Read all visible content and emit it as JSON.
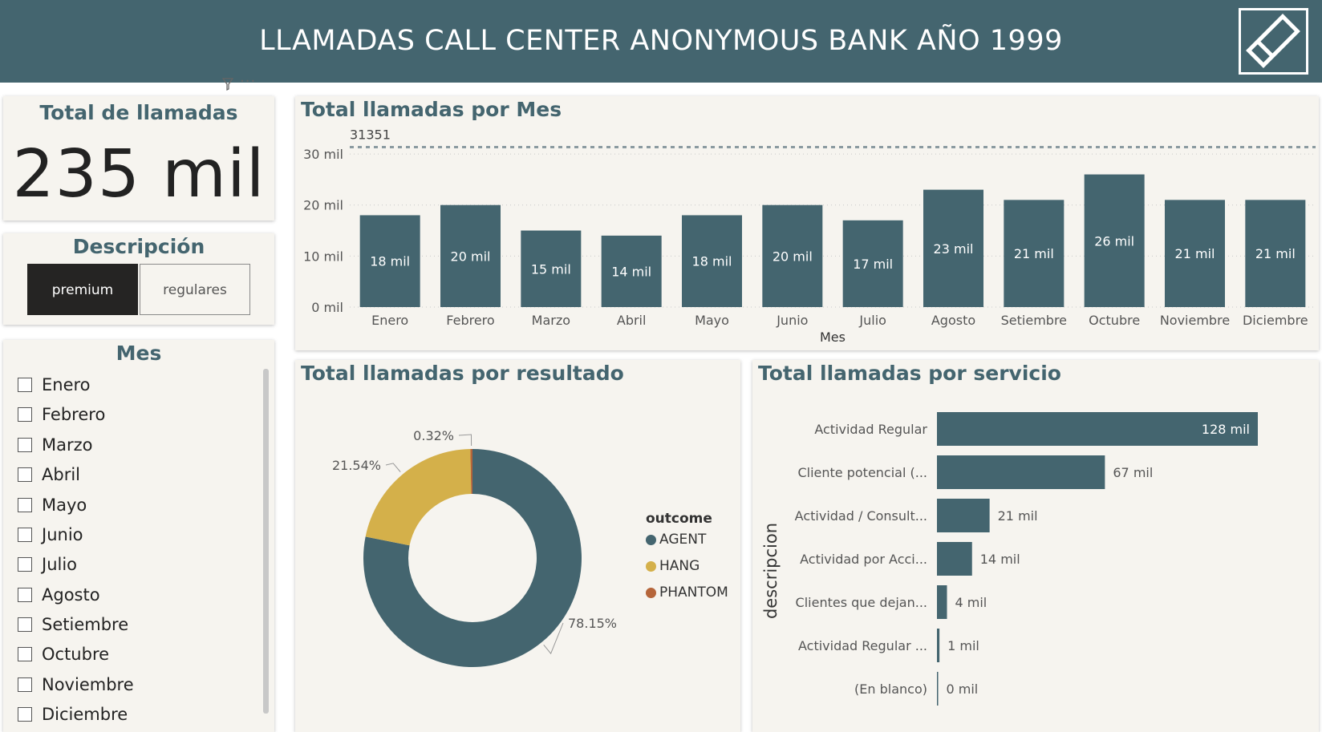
{
  "header": {
    "title": "LLAMADAS CALL CENTER ANONYMOUS BANK AÑO 1999"
  },
  "toolbar": {
    "filter_icon": "filter-icon",
    "more_icon": "more-options-icon",
    "more_label": "···"
  },
  "kpi": {
    "title": "Total de llamadas",
    "value": "235 mil"
  },
  "descripcion": {
    "title": "Descripción",
    "options": [
      {
        "label": "premium",
        "selected": true
      },
      {
        "label": "regulares",
        "selected": false
      }
    ]
  },
  "mes": {
    "title": "Mes",
    "items": [
      "Enero",
      "Febrero",
      "Marzo",
      "Abril",
      "Mayo",
      "Junio",
      "Julio",
      "Agosto",
      "Setiembre",
      "Octubre",
      "Noviembre",
      "Diciembre"
    ]
  },
  "colors": {
    "primary": "#44656f",
    "hang": "#d4b04a",
    "phantom": "#b5653a",
    "panel_bg": "#f6f4ef",
    "selected_btn": "#252423"
  },
  "chart_data": [
    {
      "type": "bar",
      "title": "Total llamadas por Mes",
      "xlabel": "Mes",
      "ylabel": "",
      "categories": [
        "Enero",
        "Febrero",
        "Marzo",
        "Abril",
        "Mayo",
        "Junio",
        "Julio",
        "Agosto",
        "Setiembre",
        "Octubre",
        "Noviembre",
        "Diciembre"
      ],
      "values": [
        18,
        20,
        15,
        14,
        18,
        20,
        17,
        23,
        21,
        26,
        21,
        21
      ],
      "data_labels": [
        "18 mil",
        "20 mil",
        "15 mil",
        "14 mil",
        "18 mil",
        "20 mil",
        "17 mil",
        "23 mil",
        "21 mil",
        "26 mil",
        "21 mil",
        "21 mil"
      ],
      "yticks": [
        0,
        10,
        20,
        30
      ],
      "ytick_labels": [
        "0 mil",
        "10 mil",
        "20 mil",
        "30 mil"
      ],
      "ylim": [
        0,
        33
      ],
      "reference_line": {
        "value": 31.351,
        "label": "31351"
      },
      "grid": true
    },
    {
      "type": "pie",
      "donut": true,
      "title": "Total llamadas por resultado",
      "legend_title": "outcome",
      "legend_position": "right",
      "labels": [
        "AGENT",
        "HANG",
        "PHANTOM"
      ],
      "values": [
        78.15,
        21.54,
        0.32
      ],
      "data_labels": [
        "78.15%",
        "21.54%",
        "0.32%"
      ]
    },
    {
      "type": "bar",
      "orientation": "horizontal",
      "title": "Total llamadas por servicio",
      "ylabel": "descripcion",
      "categories": [
        "Actividad Regular",
        "Cliente potencial (...",
        "Actividad / Consult...",
        "Actividad por Acci...",
        "Clientes que dejan...",
        "Actividad Regular ...",
        "(En blanco)"
      ],
      "values": [
        128,
        67,
        21,
        14,
        4,
        1,
        0
      ],
      "data_labels": [
        "128 mil",
        "67 mil",
        "21 mil",
        "14 mil",
        "4 mil",
        "1 mil",
        "0 mil"
      ],
      "xlim": [
        0,
        140
      ]
    }
  ]
}
